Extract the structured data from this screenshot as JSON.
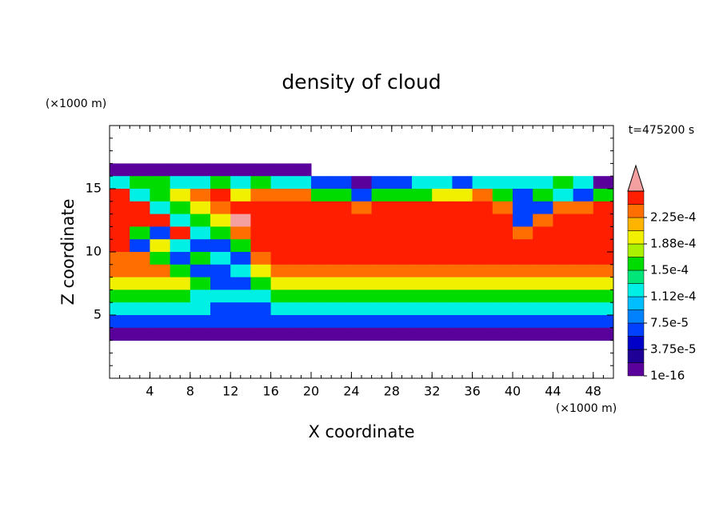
{
  "chart_data": {
    "type": "contour",
    "title": "density of cloud",
    "x_label": "X coordinate",
    "y_label": "Z coordinate",
    "x_unit": "(×1000 m)",
    "y_unit": "(×1000 m)",
    "annotation": "t=475200 s",
    "xlim": [
      0,
      50
    ],
    "ylim": [
      0,
      20
    ],
    "xticks": [
      4,
      8,
      12,
      16,
      20,
      24,
      28,
      32,
      36,
      40,
      44,
      48
    ],
    "yticks": [
      5,
      10,
      15
    ],
    "minor_tick_step": 1,
    "x": [
      1,
      3,
      5,
      7,
      9,
      11,
      13,
      15,
      17,
      19,
      21,
      23,
      25,
      27,
      29,
      31,
      33,
      35,
      37,
      39,
      41,
      43,
      45,
      47,
      49
    ],
    "y": [
      16.5,
      15.5,
      14.5,
      13.5,
      12.5,
      11.5,
      10.5,
      9.5,
      8.5,
      7.5,
      6.5,
      5.5,
      4.5,
      3.5
    ],
    "z": [
      [
        1e-05,
        1e-05,
        1e-05,
        1e-05,
        1e-05,
        1e-05,
        1e-05,
        1e-05,
        1e-05,
        1e-05,
        null,
        null,
        null,
        null,
        null,
        null,
        null,
        null,
        null,
        null,
        null,
        null,
        null,
        null,
        null
      ],
      [
        0.00012,
        0.000155,
        0.000155,
        0.00012,
        0.00012,
        0.000155,
        0.00012,
        0.000155,
        0.00012,
        0.00012,
        6e-05,
        6e-05,
        1e-05,
        6e-05,
        6e-05,
        0.00012,
        0.00012,
        6e-05,
        0.00012,
        0.00012,
        0.00012,
        0.00012,
        0.000155,
        0.00012,
        1e-05
      ],
      [
        0.00025,
        0.00012,
        0.000155,
        0.00019,
        0.00023,
        0.00025,
        0.00019,
        0.00023,
        0.00023,
        0.00023,
        0.000155,
        0.000155,
        6e-05,
        0.000155,
        0.000155,
        0.000155,
        0.00019,
        0.00019,
        0.00023,
        0.000155,
        6e-05,
        0.000155,
        0.00012,
        6e-05,
        0.000155
      ],
      [
        0.00025,
        0.00025,
        0.00012,
        0.000155,
        0.00019,
        0.00023,
        0.00025,
        0.00025,
        0.00025,
        0.00025,
        0.00025,
        0.00025,
        0.00023,
        0.00025,
        0.00025,
        0.00025,
        0.00025,
        0.00025,
        0.00025,
        0.00023,
        6e-05,
        6e-05,
        0.00023,
        0.00023,
        0.00025
      ],
      [
        0.00025,
        0.00025,
        0.00025,
        0.00012,
        0.000155,
        0.00019,
        0.00027,
        0.00025,
        0.00025,
        0.00025,
        0.00025,
        0.00025,
        0.00025,
        0.00025,
        0.00025,
        0.00025,
        0.00025,
        0.00025,
        0.00025,
        0.00025,
        6e-05,
        0.00023,
        0.00025,
        0.00025,
        0.00025
      ],
      [
        0.00025,
        0.000155,
        6e-05,
        0.00025,
        0.00012,
        0.000155,
        0.00023,
        0.00025,
        0.00025,
        0.00025,
        0.00025,
        0.00025,
        0.00025,
        0.00025,
        0.00025,
        0.00025,
        0.00025,
        0.00025,
        0.00025,
        0.00025,
        0.00023,
        0.00025,
        0.00025,
        0.00025,
        0.00025
      ],
      [
        0.00025,
        6e-05,
        0.00019,
        0.00012,
        6e-05,
        6e-05,
        0.000155,
        0.00025,
        0.00025,
        0.00025,
        0.00025,
        0.00025,
        0.00025,
        0.00025,
        0.00025,
        0.00025,
        0.00025,
        0.00025,
        0.00025,
        0.00025,
        0.00025,
        0.00025,
        0.00025,
        0.00025,
        0.00025
      ],
      [
        0.00023,
        0.00023,
        0.000155,
        6e-05,
        0.000155,
        0.00012,
        6e-05,
        0.00023,
        0.00025,
        0.00025,
        0.00025,
        0.00025,
        0.00025,
        0.00025,
        0.00025,
        0.00025,
        0.00025,
        0.00025,
        0.00025,
        0.00025,
        0.00025,
        0.00025,
        0.00025,
        0.00025,
        0.00025
      ],
      [
        0.00023,
        0.00023,
        0.00023,
        0.000155,
        6e-05,
        6e-05,
        0.00012,
        0.00019,
        0.00023,
        0.00023,
        0.00023,
        0.00023,
        0.00023,
        0.00023,
        0.00023,
        0.00023,
        0.00023,
        0.00023,
        0.00023,
        0.00023,
        0.00023,
        0.00023,
        0.00023,
        0.00023,
        0.00023
      ],
      [
        0.00019,
        0.00019,
        0.00019,
        0.00019,
        0.000155,
        6e-05,
        6e-05,
        0.000155,
        0.00019,
        0.00019,
        0.00019,
        0.00019,
        0.00019,
        0.00019,
        0.00019,
        0.00019,
        0.00019,
        0.00019,
        0.00019,
        0.00019,
        0.00019,
        0.00019,
        0.00019,
        0.00019,
        0.00019
      ],
      [
        0.000155,
        0.000155,
        0.000155,
        0.000155,
        0.00012,
        0.00012,
        0.00012,
        0.00012,
        0.000155,
        0.000155,
        0.000155,
        0.000155,
        0.000155,
        0.000155,
        0.000155,
        0.000155,
        0.000155,
        0.000155,
        0.000155,
        0.000155,
        0.000155,
        0.000155,
        0.000155,
        0.000155,
        0.000155
      ],
      [
        0.00012,
        0.00012,
        0.00012,
        0.00012,
        0.00012,
        6e-05,
        6e-05,
        6e-05,
        0.00012,
        0.00012,
        0.00012,
        0.00012,
        0.00012,
        0.00012,
        0.00012,
        0.00012,
        0.00012,
        0.00012,
        0.00012,
        0.00012,
        0.00012,
        0.00012,
        0.00012,
        0.00012,
        0.00012
      ],
      [
        6e-05,
        6e-05,
        6e-05,
        6e-05,
        6e-05,
        6e-05,
        6e-05,
        6e-05,
        6e-05,
        6e-05,
        6e-05,
        6e-05,
        6e-05,
        6e-05,
        6e-05,
        6e-05,
        6e-05,
        6e-05,
        6e-05,
        6e-05,
        6e-05,
        6e-05,
        6e-05,
        6e-05,
        6e-05
      ],
      [
        1e-05,
        1e-05,
        1e-05,
        1e-05,
        1e-05,
        1e-05,
        1e-05,
        1e-05,
        1e-05,
        1e-05,
        1e-05,
        1e-05,
        1e-05,
        1e-05,
        1e-05,
        1e-05,
        1e-05,
        1e-05,
        1e-05,
        1e-05,
        1e-05,
        1e-05,
        1e-05,
        1e-05,
        1e-05
      ]
    ],
    "levels": [
      1e-16,
      1.875e-05,
      3.75e-05,
      5.625e-05,
      7.5e-05,
      9.375e-05,
      0.0001125,
      0.00013125,
      0.00015,
      0.00016875,
      0.0001875,
      0.00020625,
      0.000225,
      0.00024375,
      0.0002625
    ],
    "colors": [
      "#5a009b",
      "#1e0096",
      "#0000c8",
      "#0041ff",
      "#0082ff",
      "#00beff",
      "#00f0e6",
      "#00e678",
      "#00dc00",
      "#aaf000",
      "#f0f000",
      "#ffb400",
      "#ff6e00",
      "#ff1e00"
    ],
    "over_color": "#f5a0a0",
    "colorbar_ticks": [
      1e-16,
      {
        "value": 3.75e-05,
        "label": "3.75e-5"
      },
      {
        "value": 7.5e-05,
        "label": "7.5e-5"
      },
      {
        "value": 0.0001125,
        "label": "1.12e-4"
      },
      {
        "value": 0.00015,
        "label": "1.5e-4"
      },
      {
        "value": 0.0001875,
        "label": "1.88e-4"
      },
      {
        "value": 0.000225,
        "label": "2.25e-4"
      }
    ]
  }
}
